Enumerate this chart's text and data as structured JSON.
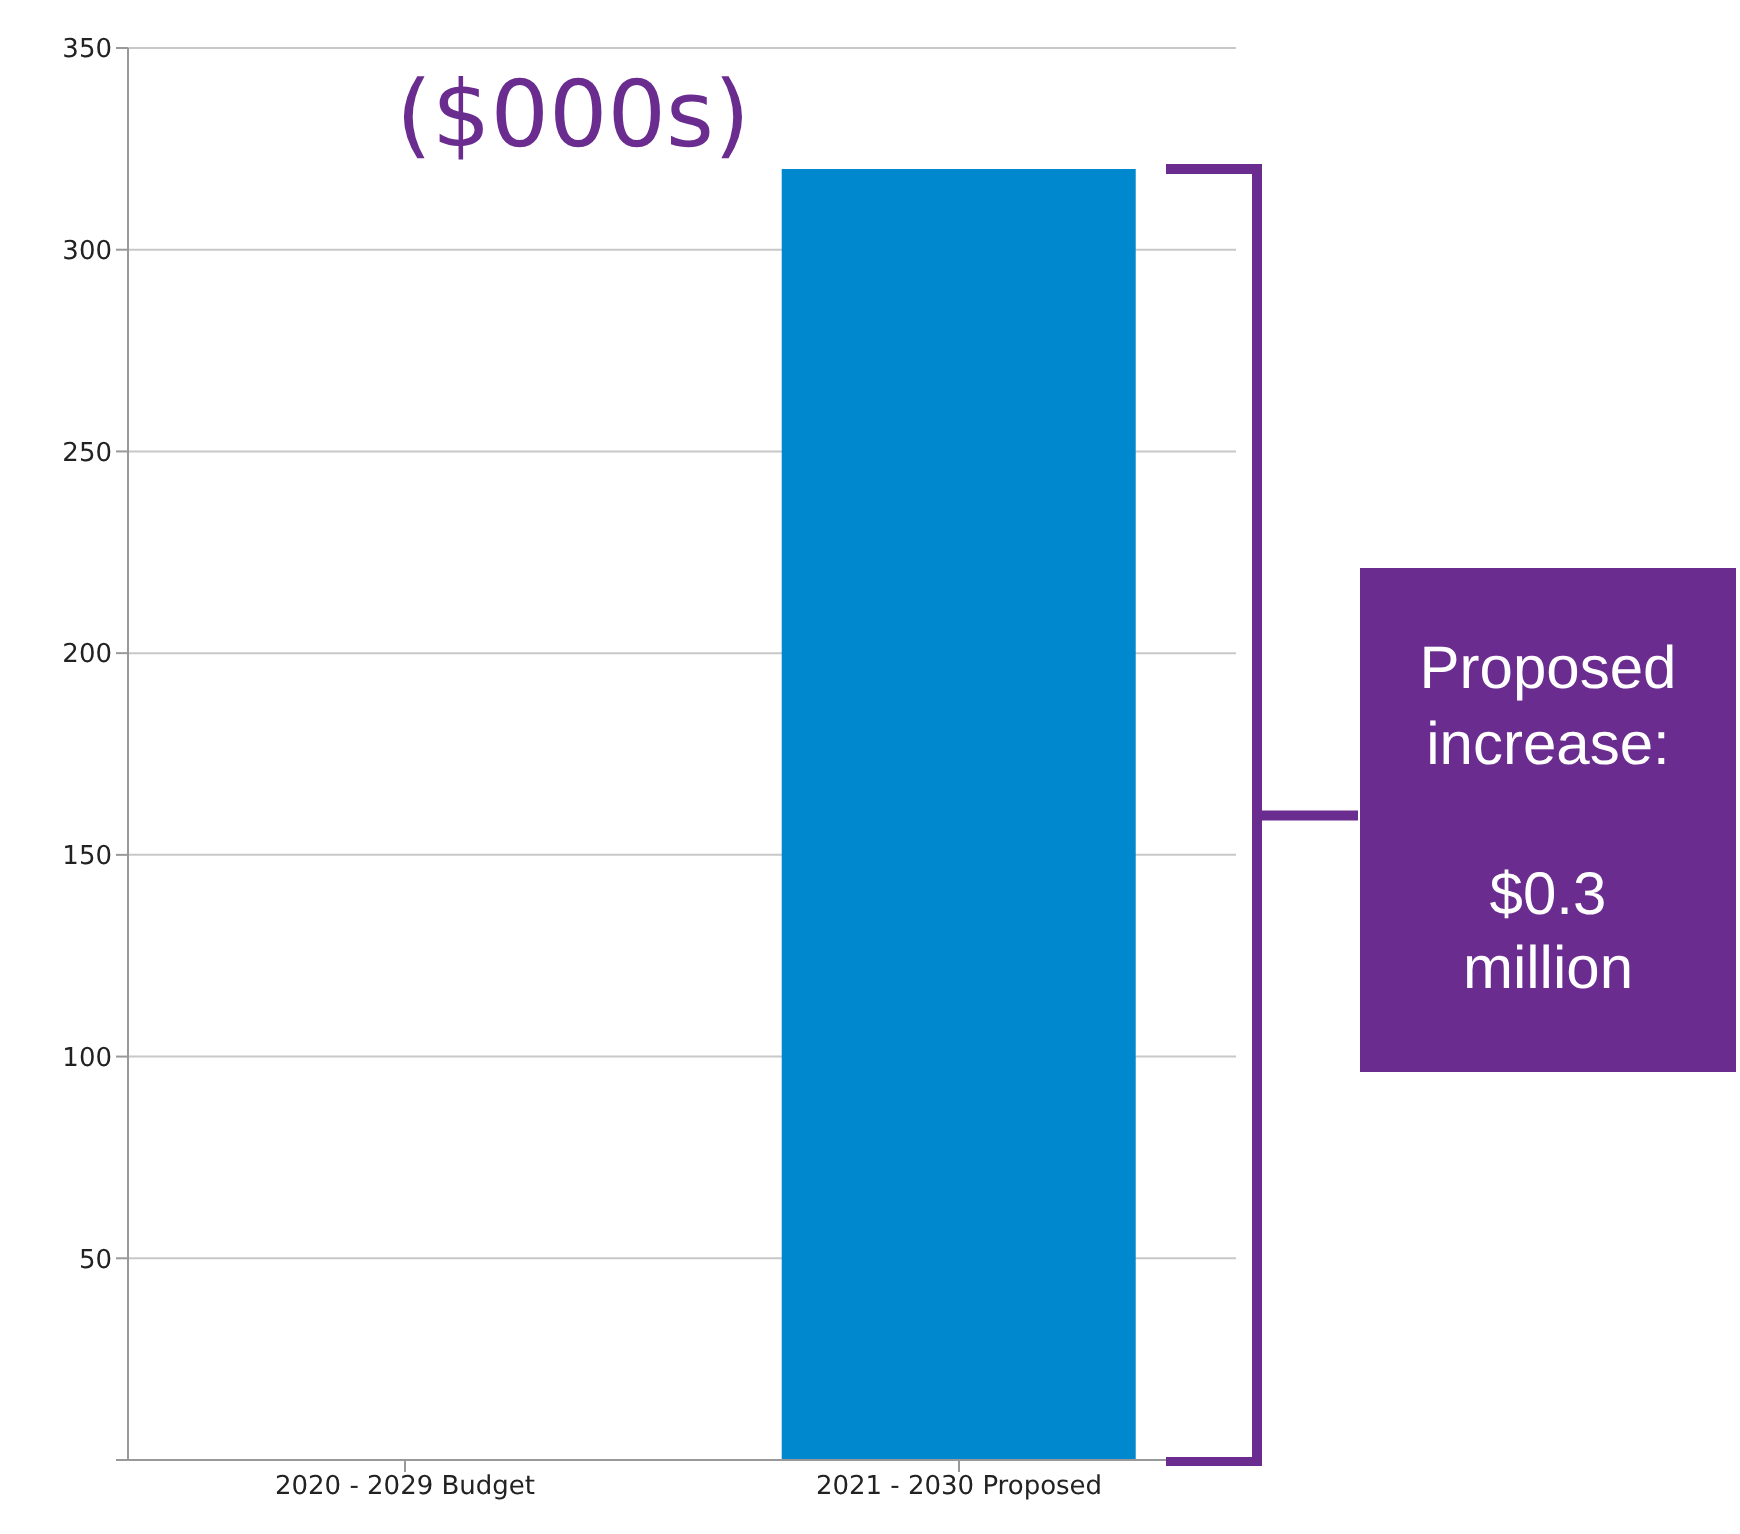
{
  "chart_data": {
    "type": "bar",
    "title": "($000s)",
    "categories": [
      "2020 - 2029 Budget",
      "2021 - 2030 Proposed"
    ],
    "values": [
      0,
      320
    ],
    "color": "#0088ce",
    "ylim": [
      0,
      350
    ],
    "yticks": [
      {
        "value": 0,
        "label": null
      },
      50,
      100,
      150,
      200,
      250,
      300,
      350
    ],
    "grid": "y",
    "annotations": [
      "Proposed increase:\n\n$0.3 million"
    ]
  }
}
